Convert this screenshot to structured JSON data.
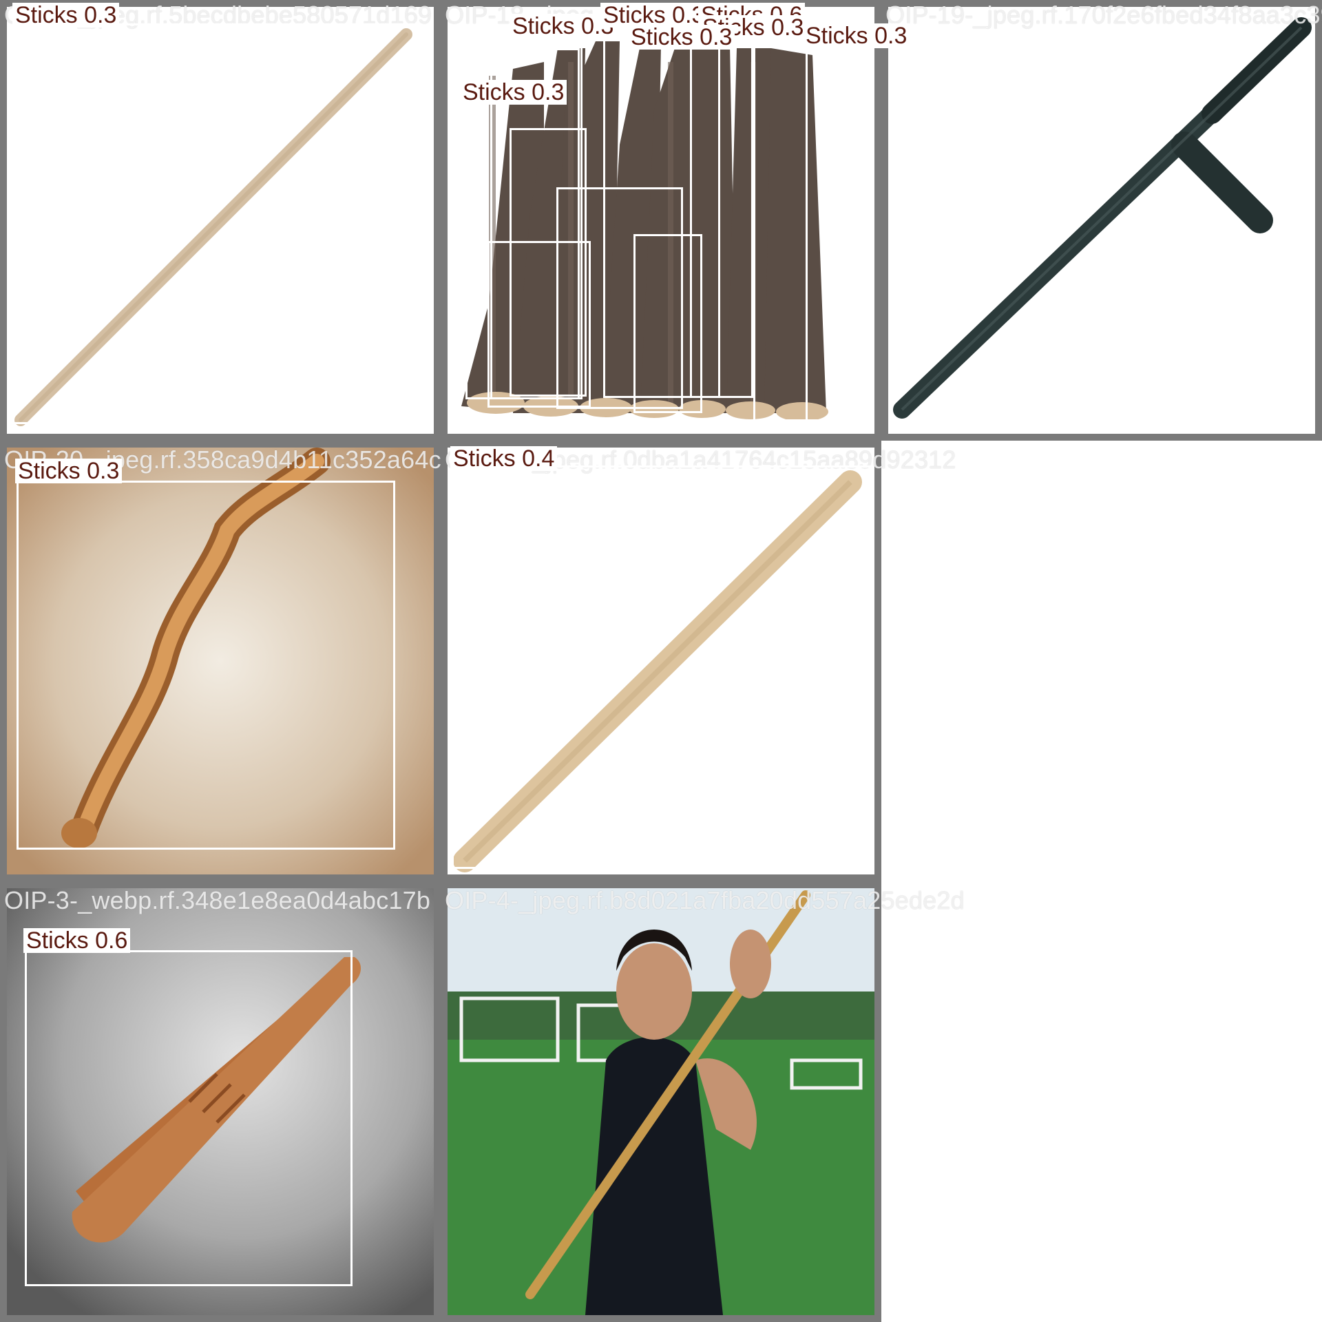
{
  "tiles": [
    {
      "id": "t1",
      "filename": "OIP-5-_jpeg.rf.5becdbebe580571d169",
      "detections": [
        {
          "label": "Sticks 0.3",
          "confidence": 0.3
        }
      ]
    },
    {
      "id": "t2",
      "filename": "OIP-18-_jpeg.rf.2c883bfd779",
      "detections": [
        {
          "label": "Sticks 0.3",
          "confidence": 0.3
        },
        {
          "label": "Sticks 0.3",
          "confidence": 0.3
        },
        {
          "label": "Sticks 0.6",
          "confidence": 0.6
        },
        {
          "label": "Sticks 0.3",
          "confidence": 0.3
        },
        {
          "label": "Sticks 0.3",
          "confidence": 0.3
        },
        {
          "label": "Sticks 0.3",
          "confidence": 0.3
        },
        {
          "label": "Sticks 0.3",
          "confidence": 0.3
        }
      ]
    },
    {
      "id": "t3",
      "filename": "OIP-19-_jpeg.rf.170f2e6fbed34f8aa3c39",
      "detections": []
    },
    {
      "id": "t4",
      "filename": "OIP-20-_jpeg.rf.358ca9d4b11c352a64c",
      "detections": [
        {
          "label": "Sticks 0.3",
          "confidence": 0.3
        }
      ]
    },
    {
      "id": "t5",
      "filename": "OIP-21-_jpeg.rf.0dba1a41764c15aa89d92312",
      "detections": [
        {
          "label": "Sticks 0.4",
          "confidence": 0.4
        }
      ]
    },
    {
      "id": "t7",
      "filename": "OIP-3-_webp.rf.348e1e8ea0d4abc17b",
      "detections": [
        {
          "label": "Sticks 0.6",
          "confidence": 0.6
        }
      ]
    },
    {
      "id": "t8",
      "filename": "OIP-4-_jpeg.rf.b8d021a7fba20dd557a25ede2d",
      "detections": []
    }
  ],
  "colors": {
    "tile_border": "#7a7a7a",
    "box": "#ffffff",
    "label_text": "#5a1a10",
    "label_bg": "#ffffff"
  }
}
